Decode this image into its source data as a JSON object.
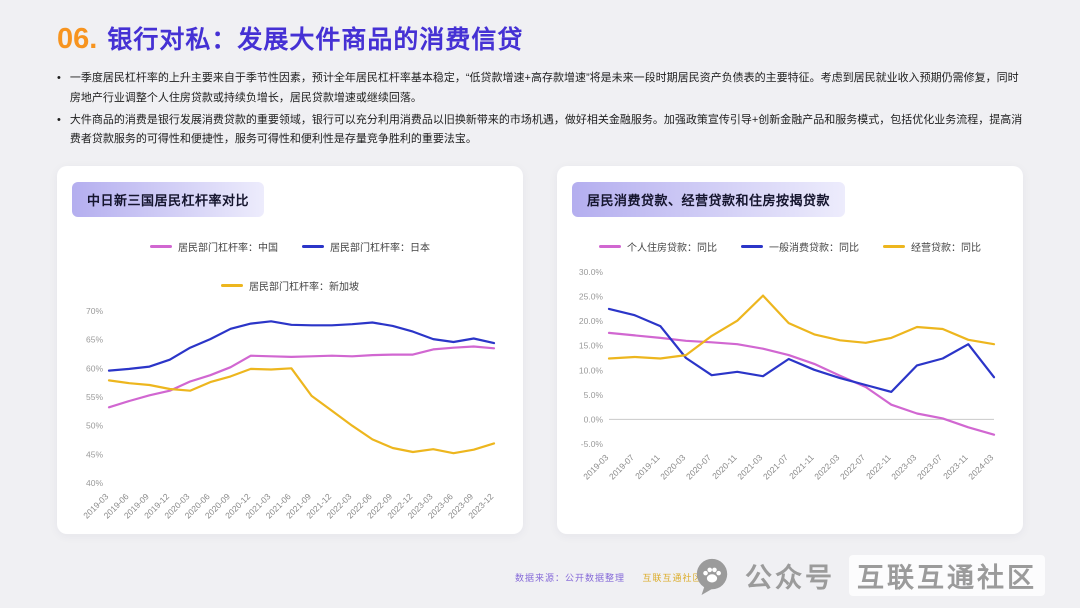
{
  "page": {
    "title_number": "06.",
    "title": "银行对私：发展大件商品的消费信贷",
    "bullets": [
      "一季度居民杠杆率的上升主要来自于季节性因素，预计全年居民杠杆率基本稳定，“低贷款增速+高存款增速”将是未来一段时期居民资产负债表的主要特征。考虑到居民就业收入预期仍需修复，同时房地产行业调整个人住房贷款或持续负增长，居民贷款增速或继续回落。",
      "大件商品的消费是银行发展消费贷款的重要领域，银行可以充分利用消费品以旧换新带来的市场机遇，做好相关金融服务。加强政策宣传引导+创新金融产品和服务模式，包括优化业务流程，提高消费者贷款服务的可得性和便捷性，服务可得性和便利性是存量竞争胜利的重要法宝。"
    ]
  },
  "footer": {
    "source_left": "数据来源：公开数据整理",
    "source_right": "互联互通社区",
    "watermark_prefix": "公众号",
    "watermark_name": "互联互通社区"
  },
  "chart_data": [
    {
      "type": "line",
      "title": "中日新三国居民杠杆率对比",
      "xlabel": "",
      "ylabel": "",
      "ylim": [
        40,
        70
      ],
      "grid": false,
      "legend_position": "top",
      "zero_line": false,
      "yticks": [
        [
          40,
          "40%"
        ],
        [
          45,
          "45%"
        ],
        [
          50,
          "50%"
        ],
        [
          55,
          "55%"
        ],
        [
          60,
          "60%"
        ],
        [
          65,
          "65%"
        ],
        [
          70,
          "70%"
        ]
      ],
      "categories": [
        "2019-03",
        "2019-06",
        "2019-09",
        "2019-12",
        "2020-03",
        "2020-06",
        "2020-09",
        "2020-12",
        "2021-03",
        "2021-06",
        "2021-09",
        "2021-12",
        "2022-03",
        "2022-06",
        "2022-09",
        "2022-12",
        "2023-03",
        "2023-06",
        "2023-09",
        "2023-12"
      ],
      "series": [
        {
          "name": "居民部门杠杆率：中国",
          "color": "#d167d1",
          "values": [
            53.2,
            54.3,
            55.3,
            56.1,
            57.7,
            58.8,
            60.2,
            62.2,
            62.1,
            62.0,
            62.1,
            62.2,
            62.1,
            62.3,
            62.4,
            62.4,
            63.3,
            63.6,
            63.8,
            63.5
          ]
        },
        {
          "name": "居民部门杠杆率：日本",
          "color": "#2b35c8",
          "values": [
            59.6,
            59.9,
            60.3,
            61.5,
            63.6,
            65.1,
            66.9,
            67.8,
            68.2,
            67.6,
            67.5,
            67.5,
            67.7,
            68.0,
            67.4,
            66.4,
            65.1,
            64.6,
            65.2,
            64.4
          ]
        },
        {
          "name": "居民部门杠杆率：新加坡",
          "color": "#edb61e",
          "values": [
            57.9,
            57.4,
            57.1,
            56.4,
            56.1,
            57.6,
            58.6,
            59.9,
            59.8,
            60.0,
            55.2,
            52.6,
            50.0,
            47.6,
            46.1,
            45.4,
            45.9,
            45.2,
            45.8,
            46.9
          ]
        }
      ]
    },
    {
      "type": "line",
      "title": "居民消费贷款、经营贷款和住房按揭贷款",
      "xlabel": "",
      "ylabel": "",
      "ylim": [
        -5,
        30
      ],
      "grid": false,
      "legend_position": "top",
      "zero_line": true,
      "yticks": [
        [
          -5,
          "-5.0%"
        ],
        [
          0,
          "0.0%"
        ],
        [
          5,
          "5.0%"
        ],
        [
          10,
          "10.0%"
        ],
        [
          15,
          "15.0%"
        ],
        [
          20,
          "20.0%"
        ],
        [
          25,
          "25.0%"
        ],
        [
          30,
          "30.0%"
        ]
      ],
      "categories": [
        "2019-03",
        "2019-07",
        "2019-11",
        "2020-03",
        "2020-07",
        "2020-11",
        "2021-03",
        "2021-07",
        "2021-11",
        "2022-03",
        "2022-07",
        "2022-11",
        "2023-03",
        "2023-07",
        "2023-11",
        "2024-03"
      ],
      "series": [
        {
          "name": "个人住房贷款：同比",
          "color": "#d167d1",
          "values": [
            17.6,
            17.1,
            16.6,
            16.0,
            15.7,
            15.3,
            14.4,
            13.1,
            11.3,
            8.9,
            6.6,
            3.0,
            1.2,
            0.2,
            -1.6,
            -3.1
          ]
        },
        {
          "name": "一般消费贷款：同比",
          "color": "#2b35c8",
          "values": [
            22.5,
            21.2,
            19.0,
            12.5,
            9.0,
            9.7,
            8.8,
            12.3,
            10.1,
            8.4,
            7.0,
            5.6,
            11.0,
            12.4,
            15.3,
            8.6
          ]
        },
        {
          "name": "经营贷款：同比",
          "color": "#edb61e",
          "values": [
            12.4,
            12.7,
            12.4,
            13.1,
            17.0,
            20.1,
            25.2,
            19.6,
            17.3,
            16.1,
            15.6,
            16.6,
            18.8,
            18.4,
            16.2,
            15.3
          ]
        }
      ]
    }
  ]
}
